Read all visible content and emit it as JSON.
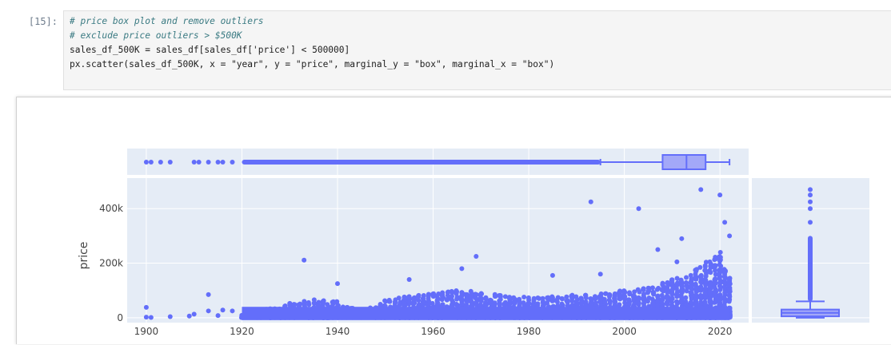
{
  "cell": {
    "prompt": "[15]:",
    "code_lines": [
      "# price box plot and remove outliers",
      "# exclude price outliers > $500K",
      "sales_df_500K = sales_df[sales_df['price'] < 500000]",
      "px.scatter(sales_df_500K, x = \"year\", y = \"price\", marginal_y = \"box\", marginal_x = \"box\")"
    ]
  },
  "colors": {
    "marker": "#636efa",
    "plot_bg": "#e5ecf6",
    "grid": "#ffffff"
  },
  "chart_data": {
    "type": "scatter",
    "xlabel": "",
    "ylabel": "price",
    "x_ticks": [
      "1900",
      "1920",
      "1940",
      "1960",
      "1980",
      "2000",
      "2020"
    ],
    "y_ticks": [
      "0",
      "200k",
      "400k"
    ],
    "xlim": [
      1896,
      2026
    ],
    "ylim": [
      -18000,
      512000
    ],
    "outlier_points": [
      {
        "x": 1900,
        "y": 38000
      },
      {
        "x": 1900,
        "y": 2000
      },
      {
        "x": 1901,
        "y": 1000
      },
      {
        "x": 1905,
        "y": 4000
      },
      {
        "x": 1909,
        "y": 6000
      },
      {
        "x": 1910,
        "y": 13000
      },
      {
        "x": 1913,
        "y": 85000
      },
      {
        "x": 1913,
        "y": 25000
      },
      {
        "x": 1915,
        "y": 8000
      },
      {
        "x": 1916,
        "y": 28000
      },
      {
        "x": 1918,
        "y": 25000
      },
      {
        "x": 1933,
        "y": 211000
      },
      {
        "x": 1969,
        "y": 225000
      },
      {
        "x": 1993,
        "y": 425000
      },
      {
        "x": 2003,
        "y": 400000
      },
      {
        "x": 2007,
        "y": 250000
      },
      {
        "x": 2011,
        "y": 205000
      },
      {
        "x": 2012,
        "y": 290000
      },
      {
        "x": 2016,
        "y": 470000
      },
      {
        "x": 2020,
        "y": 450000
      },
      {
        "x": 2021,
        "y": 350000
      },
      {
        "x": 2022,
        "y": 300000
      },
      {
        "x": 1966,
        "y": 180000
      },
      {
        "x": 1940,
        "y": 125000
      },
      {
        "x": 1955,
        "y": 140000
      },
      {
        "x": 1985,
        "y": 155000
      },
      {
        "x": 1995,
        "y": 160000
      }
    ],
    "density_envelope": {
      "years": [
        1920,
        1925,
        1930,
        1935,
        1940,
        1945,
        1950,
        1955,
        1960,
        1965,
        1970,
        1975,
        1980,
        1985,
        1990,
        1995,
        2000,
        2005,
        2010,
        2015,
        2020,
        2022
      ],
      "upper_price": [
        20000,
        35000,
        55000,
        70000,
        60000,
        20000,
        65000,
        80000,
        90000,
        100000,
        95000,
        80000,
        75000,
        80000,
        85000,
        90000,
        100000,
        110000,
        140000,
        180000,
        240000,
        150000
      ]
    },
    "marginal_x_box": {
      "q1": 2008,
      "median": 2013,
      "q3": 2017,
      "whisker_low": 1995,
      "whisker_high": 2022,
      "outlier_range": [
        1920,
        1995
      ],
      "outliers_sparse": [
        1900,
        1901,
        1903,
        1905,
        1910,
        1911,
        1913,
        1915,
        1916,
        1918
      ]
    },
    "marginal_y_box": {
      "q1": 5000,
      "median": 18000,
      "q3": 30000,
      "whisker_low": 0,
      "whisker_high": 60000,
      "outlier_range": [
        60000,
        300000
      ],
      "outliers_sparse": [
        350000,
        400000,
        425000,
        450000,
        470000
      ]
    }
  }
}
